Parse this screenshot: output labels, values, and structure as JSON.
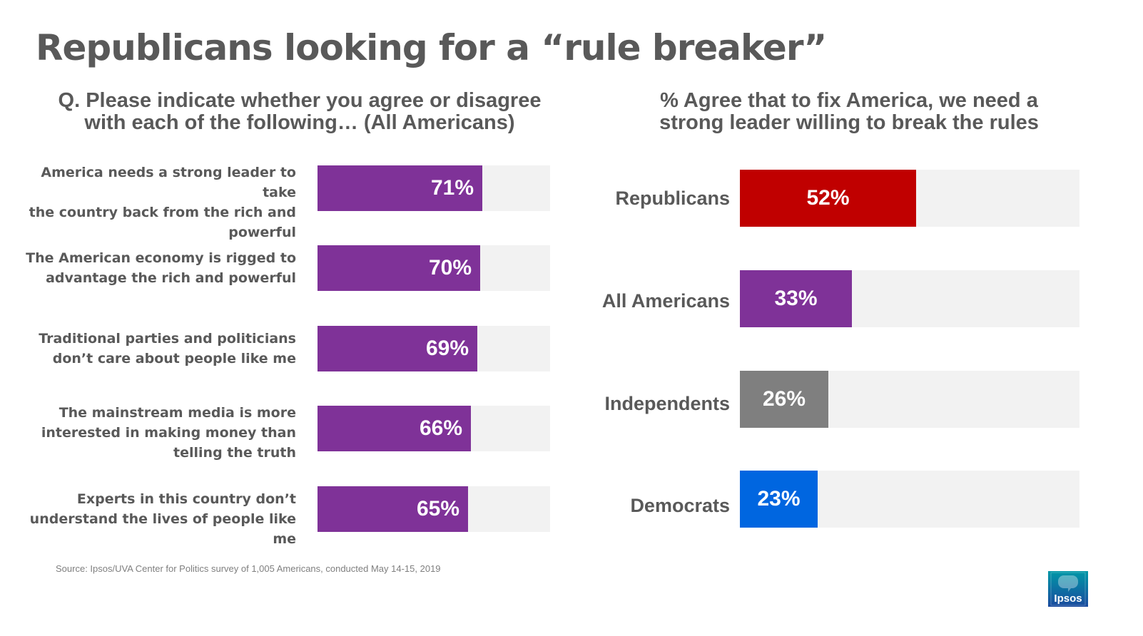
{
  "title": "Republicans looking for a “rule breaker”",
  "chart_data": [
    {
      "type": "bar",
      "orientation": "horizontal",
      "title": "Q. Please indicate whether you agree or disagree with each of the following… (All Americans)",
      "title_lines": [
        "Q. Please indicate whether you agree or disagree",
        "with each of the following… (All Americans)"
      ],
      "categories": [
        "America needs a strong leader to take the country back from the rich and powerful",
        "The American economy is rigged to advantage the rich and powerful",
        "Traditional parties and politicians don’t care about people like me",
        "The mainstream media is more interested in making money than telling the truth",
        "Experts in this country don’t understand the lives of people like me"
      ],
      "category_lines": [
        [
          "America needs a strong leader to take",
          "the country back from the rich and",
          "powerful"
        ],
        [
          "The American economy is rigged to",
          "advantage the rich and powerful"
        ],
        [
          "Traditional parties and politicians",
          "don’t care about people like me"
        ],
        [
          "The mainstream media is more",
          "interested in making money than",
          "telling the truth"
        ],
        [
          "Experts in this country don’t",
          "understand the lives of people like me"
        ]
      ],
      "values": [
        71,
        70,
        69,
        66,
        65
      ],
      "value_labels": [
        "71%",
        "70%",
        "69%",
        "66%",
        "65%"
      ],
      "xlim": [
        0,
        100
      ],
      "unit": "%",
      "bar_color": "#7f3298",
      "track_color": "#f2f2f2"
    },
    {
      "type": "bar",
      "orientation": "horizontal",
      "title": "% Agree that to fix America, we need a strong leader willing to break the rules",
      "title_lines": [
        "% Agree that to fix America, we need a",
        "strong leader willing to break the rules"
      ],
      "categories": [
        "Republicans",
        "All Americans",
        "Independents",
        "Democrats"
      ],
      "values": [
        52,
        33,
        26,
        23
      ],
      "value_labels": [
        "52%",
        "33%",
        "26%",
        "23%"
      ],
      "colors": [
        "#c00000",
        "#7f3298",
        "#7f7f7f",
        "#0066e0"
      ],
      "xlim": [
        0,
        100
      ],
      "unit": "%",
      "track_color": "#f2f2f2"
    }
  ],
  "source": "Source: Ipsos/UVA Center for Politics survey of 1,005 Americans, conducted May 14-15, 2019",
  "logo": {
    "text": "Ipsos",
    "colors": {
      "top": "#0097a7",
      "bottom": "#1a4a9e"
    }
  }
}
